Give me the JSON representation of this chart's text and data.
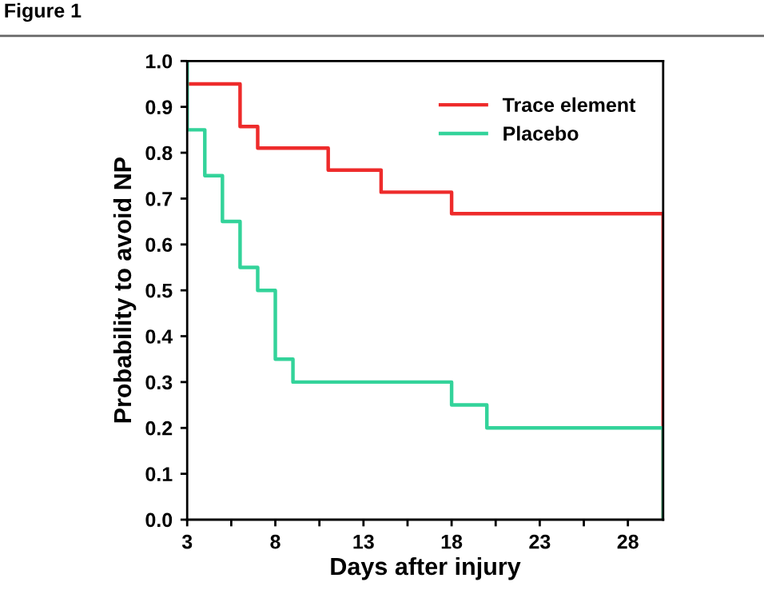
{
  "chart_data": {
    "type": "step",
    "title": "Figure 1",
    "xlabel": "Days after injury",
    "ylabel": "Probability to avoid NP",
    "series": [
      {
        "name": "Trace element",
        "color": "#ee2b2b",
        "x": [
          3,
          6,
          7,
          11,
          14,
          18,
          30,
          30
        ],
        "values": [
          0.95,
          0.857,
          0.81,
          0.762,
          0.714,
          0.667,
          0.667,
          0
        ]
      },
      {
        "name": "Placebo",
        "color": "#33d39a",
        "x": [
          3,
          3,
          4,
          5,
          6,
          7,
          8,
          9,
          18,
          20,
          30,
          30
        ],
        "values": [
          1.0,
          0.85,
          0.75,
          0.65,
          0.55,
          0.5,
          0.35,
          0.3,
          0.25,
          0.2,
          0.2,
          0
        ]
      }
    ],
    "xlim": [
      3,
      30
    ],
    "ylim": [
      0,
      1.0
    ],
    "xticks": [
      3,
      {
        "value": 5.5,
        "label": null
      },
      8,
      {
        "value": 10.5,
        "label": null
      },
      13,
      {
        "value": 15.5,
        "label": null
      },
      18,
      {
        "value": 20.5,
        "label": null
      },
      23,
      {
        "value": 25.5,
        "label": null
      },
      28
    ],
    "yticks": [
      {
        "value": 0,
        "label": "0.0"
      },
      0.1,
      0.2,
      0.3,
      0.4,
      0.5,
      0.6,
      0.7,
      0.8,
      0.9,
      {
        "value": 1.0,
        "label": "1.0"
      }
    ],
    "grid": false,
    "legend": "top right",
    "marker": "none",
    "line_style": "solid"
  }
}
